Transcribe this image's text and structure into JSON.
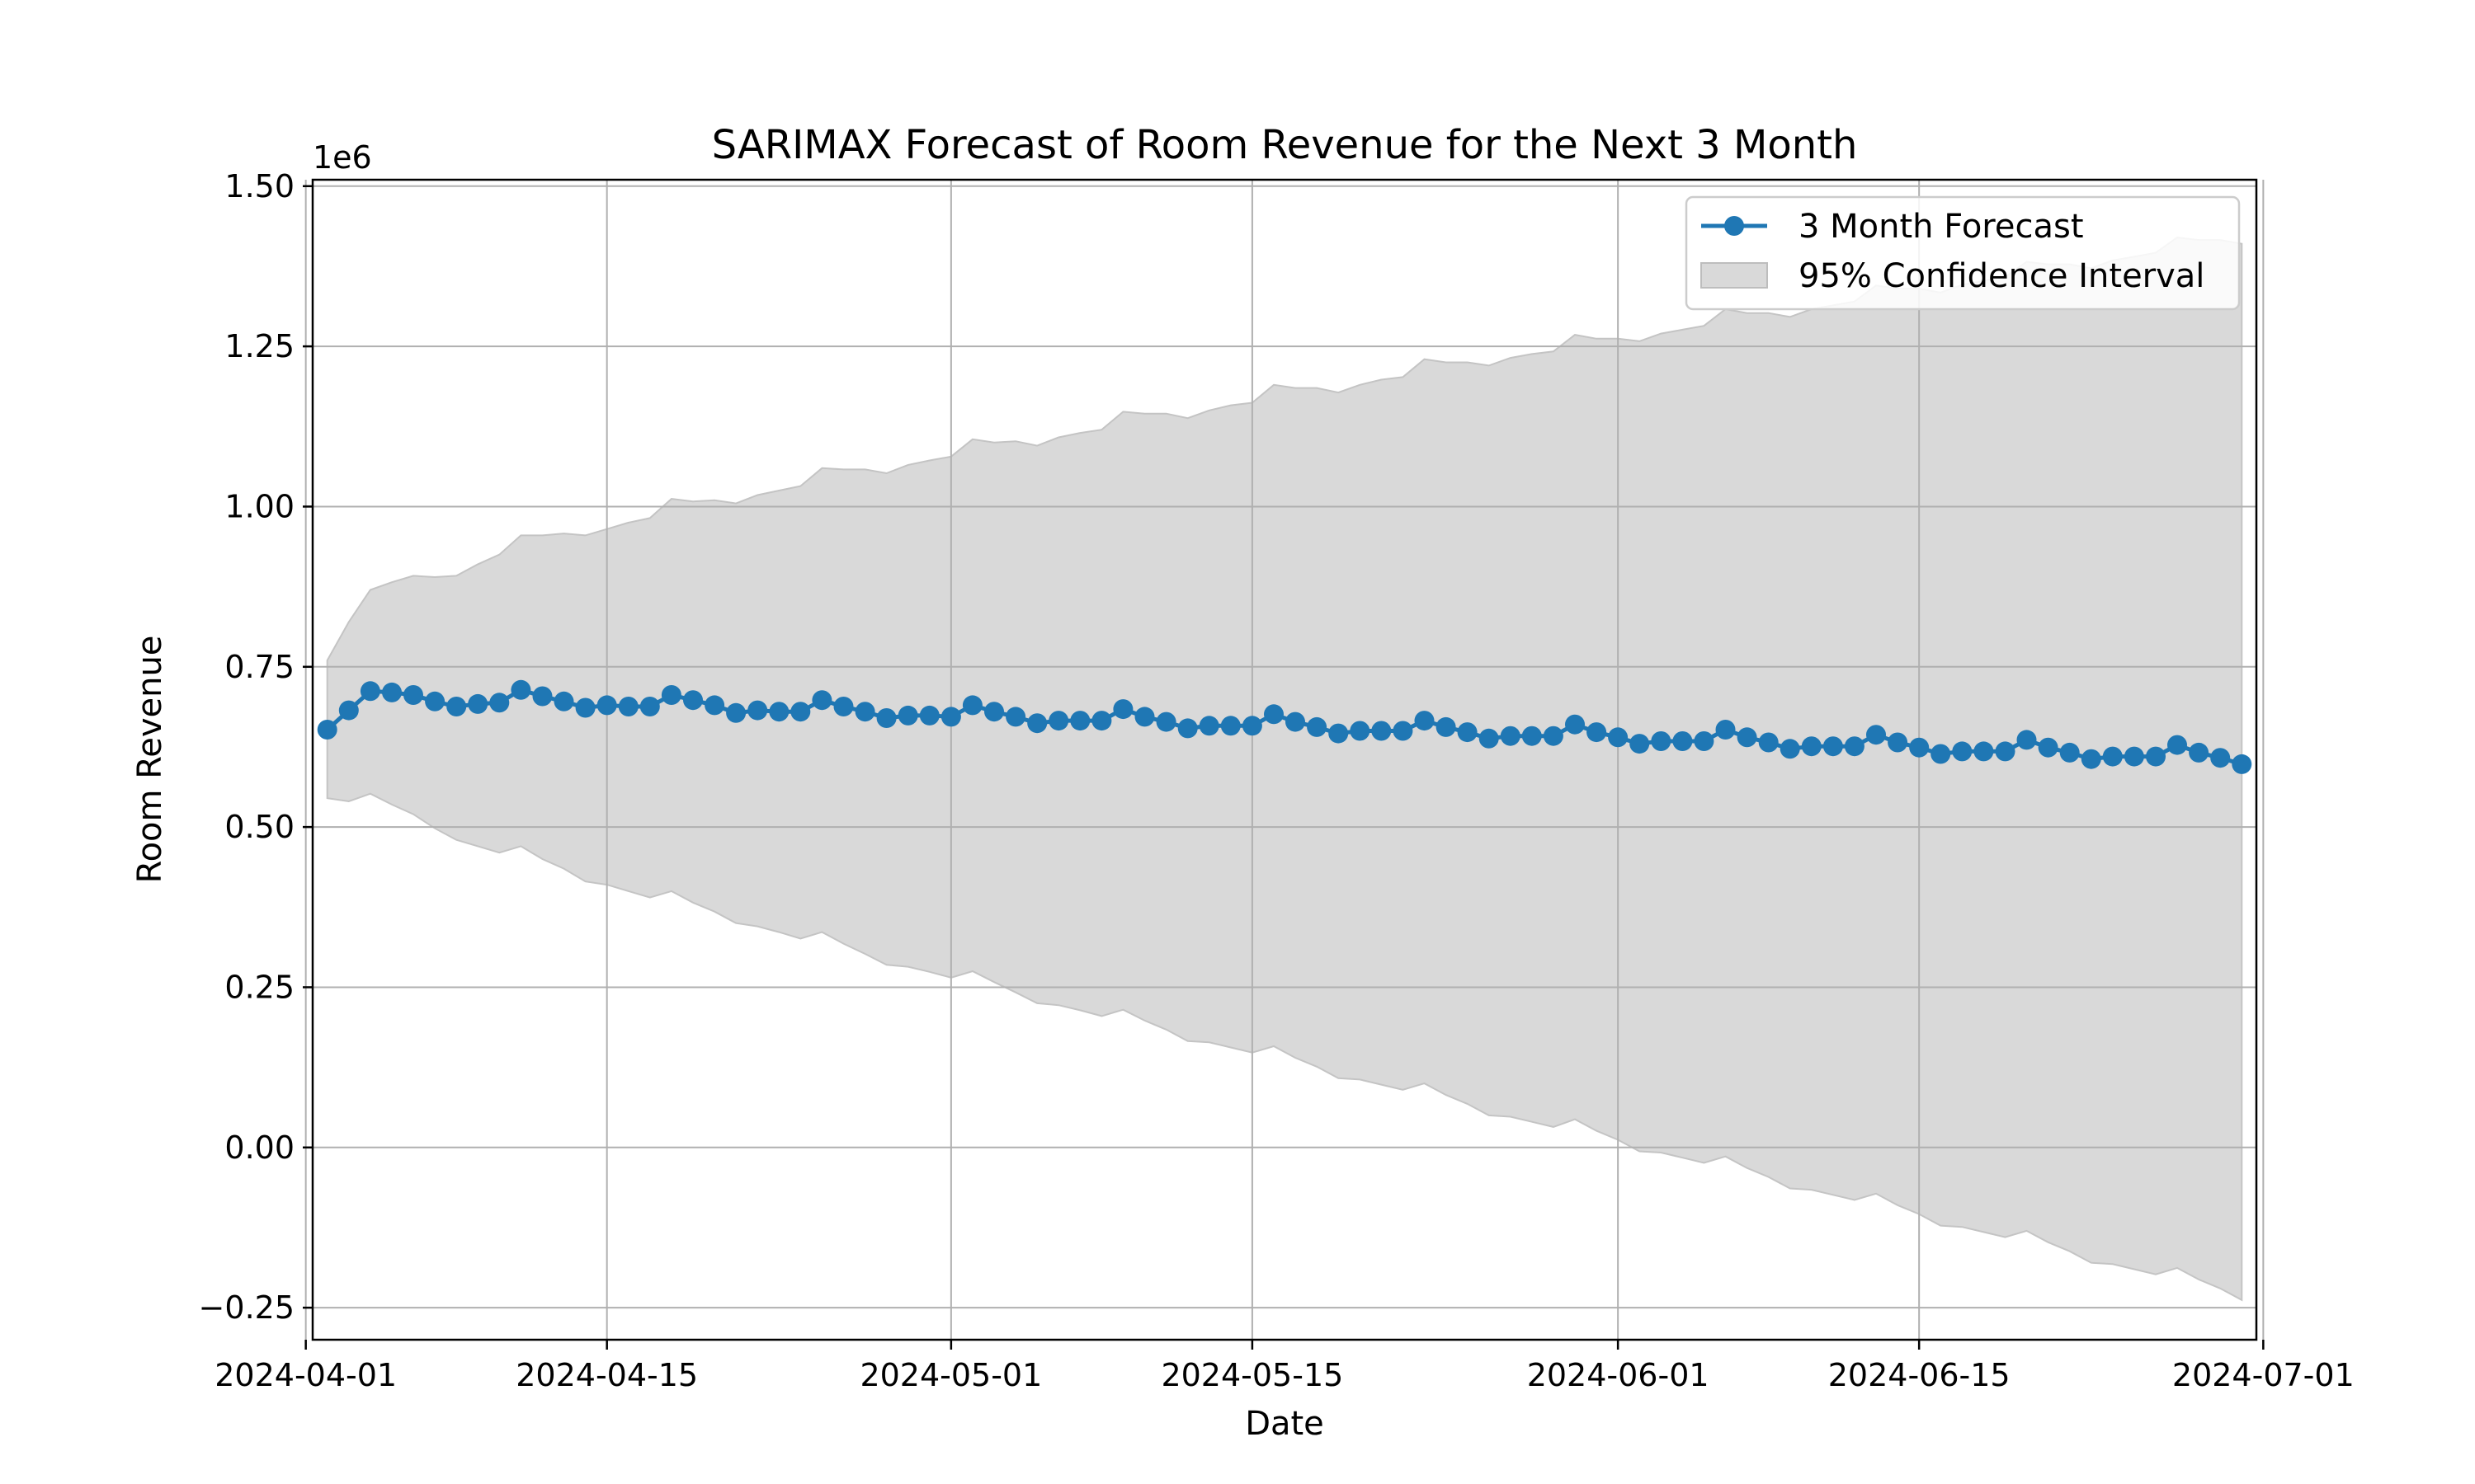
{
  "chart_data": {
    "type": "line",
    "title": "SARIMAX Forecast of Room Revenue for the Next 3 Month",
    "xlabel": "Date",
    "ylabel": "Room Revenue",
    "y_offset_label": "1e6",
    "x_start": "2024-04-02",
    "ylim": [
      -0.3,
      1.51
    ],
    "y_ticks": [
      -0.25,
      0.0,
      0.25,
      0.5,
      0.75,
      1.0,
      1.25,
      1.5
    ],
    "y_tick_labels": [
      "−0.25",
      "0.00",
      "0.25",
      "0.50",
      "0.75",
      "1.00",
      "1.25",
      "1.50"
    ],
    "x_ticks": [
      "2024-04-01",
      "2024-04-15",
      "2024-05-01",
      "2024-05-15",
      "2024-06-01",
      "2024-06-15",
      "2024-07-01"
    ],
    "grid": true,
    "legend_position": "top-right",
    "series": [
      {
        "name": "3 Month Forecast",
        "color": "#1f77b4",
        "values": [
          0.652,
          0.682,
          0.712,
          0.71,
          0.706,
          0.696,
          0.688,
          0.692,
          0.694,
          0.714,
          0.704,
          0.696,
          0.686,
          0.69,
          0.688,
          0.688,
          0.706,
          0.698,
          0.69,
          0.678,
          0.682,
          0.68,
          0.68,
          0.698,
          0.688,
          0.68,
          0.67,
          0.674,
          0.674,
          0.672,
          0.69,
          0.68,
          0.672,
          0.662,
          0.666,
          0.666,
          0.666,
          0.684,
          0.672,
          0.664,
          0.654,
          0.658,
          0.658,
          0.658,
          0.676,
          0.664,
          0.656,
          0.646,
          0.65,
          0.65,
          0.65,
          0.666,
          0.656,
          0.648,
          0.638,
          0.642,
          0.642,
          0.642,
          0.66,
          0.648,
          0.64,
          0.63,
          0.634,
          0.634,
          0.634,
          0.652,
          0.64,
          0.632,
          0.622,
          0.626,
          0.626,
          0.626,
          0.644,
          0.632,
          0.624,
          0.614,
          0.618,
          0.618,
          0.618,
          0.636,
          0.624,
          0.616,
          0.606,
          0.61,
          0.61,
          0.61,
          0.628,
          0.616,
          0.608,
          0.598
        ]
      }
    ],
    "confidence_interval": {
      "name": "95% Confidence Interval",
      "color": "#d9d9d9",
      "upper": [
        0.76,
        0.82,
        0.87,
        0.882,
        0.892,
        0.89,
        0.892,
        0.91,
        0.925,
        0.955,
        0.955,
        0.958,
        0.955,
        0.965,
        0.975,
        0.982,
        1.012,
        1.008,
        1.01,
        1.005,
        1.018,
        1.025,
        1.032,
        1.06,
        1.058,
        1.058,
        1.052,
        1.065,
        1.072,
        1.078,
        1.105,
        1.1,
        1.102,
        1.095,
        1.108,
        1.115,
        1.12,
        1.148,
        1.145,
        1.145,
        1.138,
        1.15,
        1.158,
        1.162,
        1.19,
        1.185,
        1.185,
        1.178,
        1.19,
        1.198,
        1.202,
        1.23,
        1.225,
        1.225,
        1.22,
        1.232,
        1.238,
        1.242,
        1.268,
        1.262,
        1.262,
        1.258,
        1.27,
        1.276,
        1.282,
        1.308,
        1.302,
        1.302,
        1.296,
        1.308,
        1.314,
        1.32,
        1.345,
        1.34,
        1.34,
        1.334,
        1.346,
        1.352,
        1.358,
        1.382,
        1.378,
        1.378,
        1.372,
        1.384,
        1.39,
        1.396,
        1.42,
        1.416,
        1.416,
        1.41
      ],
      "lower": [
        0.545,
        0.54,
        0.552,
        0.535,
        0.52,
        0.498,
        0.48,
        0.47,
        0.46,
        0.47,
        0.45,
        0.435,
        0.415,
        0.41,
        0.4,
        0.39,
        0.4,
        0.382,
        0.368,
        0.35,
        0.345,
        0.336,
        0.326,
        0.336,
        0.318,
        0.302,
        0.285,
        0.282,
        0.274,
        0.265,
        0.275,
        0.258,
        0.242,
        0.225,
        0.222,
        0.214,
        0.205,
        0.215,
        0.198,
        0.184,
        0.166,
        0.164,
        0.156,
        0.148,
        0.158,
        0.14,
        0.126,
        0.108,
        0.106,
        0.098,
        0.09,
        0.1,
        0.082,
        0.068,
        0.05,
        0.048,
        0.04,
        0.032,
        0.044,
        0.026,
        0.012,
        -0.006,
        -0.008,
        -0.016,
        -0.024,
        -0.014,
        -0.032,
        -0.046,
        -0.064,
        -0.066,
        -0.074,
        -0.082,
        -0.072,
        -0.09,
        -0.104,
        -0.122,
        -0.124,
        -0.132,
        -0.14,
        -0.13,
        -0.148,
        -0.162,
        -0.18,
        -0.182,
        -0.19,
        -0.198,
        -0.188,
        -0.206,
        -0.22,
        -0.238
      ]
    }
  }
}
